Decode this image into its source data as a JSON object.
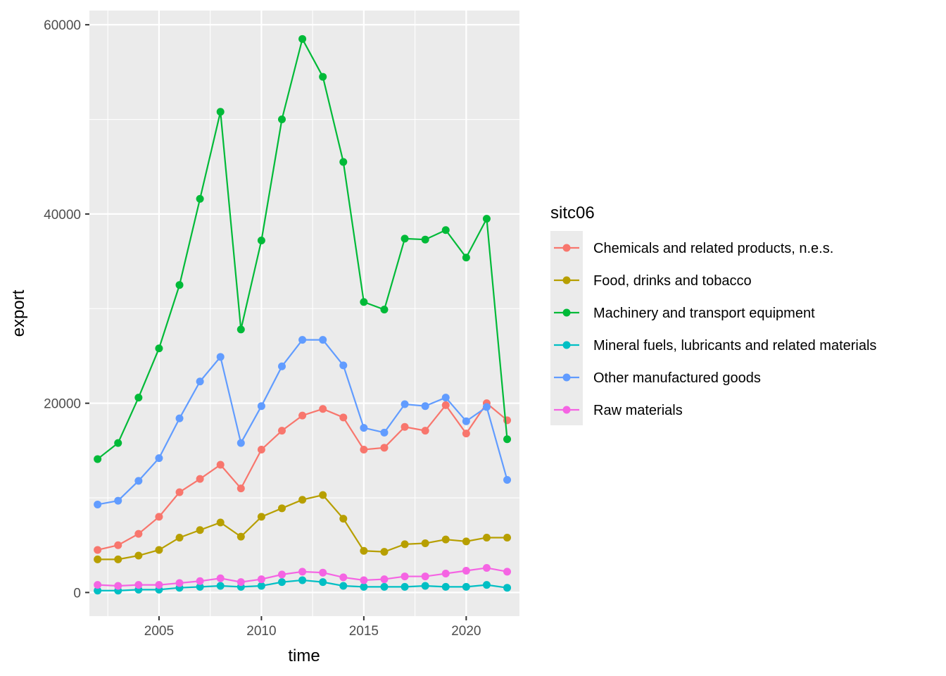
{
  "chart_data": {
    "type": "line",
    "xlabel": "time",
    "ylabel": "export",
    "xlim": [
      2001.6,
      2022.6
    ],
    "ylim": [
      -2500,
      61500
    ],
    "x_ticks": [
      2005,
      2010,
      2015,
      2020
    ],
    "y_ticks": [
      0,
      20000,
      40000,
      60000
    ],
    "grid": true,
    "legend": {
      "title": "sitc06",
      "position": "right"
    },
    "x": [
      2002,
      2003,
      2004,
      2005,
      2006,
      2007,
      2008,
      2009,
      2010,
      2011,
      2012,
      2013,
      2014,
      2015,
      2016,
      2017,
      2018,
      2019,
      2020,
      2021,
      2022
    ],
    "series": [
      {
        "name": "Chemicals and related products, n.e.s.",
        "color": "#F8766D",
        "values": [
          4500,
          5000,
          6200,
          8000,
          10600,
          12000,
          13500,
          11000,
          15100,
          17100,
          18700,
          19400,
          18500,
          15100,
          15300,
          17500,
          17100,
          19800,
          16800,
          20000,
          18200
        ]
      },
      {
        "name": "Food, drinks and tobacco",
        "color": "#B79F00",
        "values": [
          3500,
          3500,
          3900,
          4500,
          5800,
          6600,
          7400,
          5900,
          8000,
          8900,
          9800,
          10300,
          7800,
          4400,
          4300,
          5100,
          5200,
          5600,
          5400,
          5800,
          5800
        ]
      },
      {
        "name": "Machinery and transport equipment",
        "color": "#00BA38",
        "values": [
          14100,
          15800,
          20600,
          25800,
          32500,
          41600,
          50800,
          27800,
          37200,
          50000,
          58500,
          54500,
          45500,
          30700,
          29900,
          37400,
          37300,
          38300,
          35400,
          39500,
          16200
        ]
      },
      {
        "name": "Mineral fuels, lubricants and related materials",
        "color": "#00BFC4",
        "values": [
          200,
          200,
          300,
          300,
          500,
          600,
          700,
          600,
          700,
          1100,
          1300,
          1100,
          700,
          600,
          600,
          600,
          700,
          600,
          600,
          800,
          500
        ]
      },
      {
        "name": "Other manufactured goods",
        "color": "#619CFF",
        "values": [
          9300,
          9700,
          11800,
          14200,
          18400,
          22300,
          24900,
          15800,
          19700,
          23900,
          26700,
          26700,
          24000,
          17400,
          16900,
          19900,
          19700,
          20600,
          18100,
          19600,
          11900
        ]
      },
      {
        "name": "Raw materials",
        "color": "#F564E3",
        "values": [
          800,
          700,
          800,
          800,
          1000,
          1200,
          1500,
          1100,
          1400,
          1900,
          2200,
          2100,
          1600,
          1300,
          1400,
          1700,
          1700,
          2000,
          2300,
          2600,
          2200
        ]
      }
    ]
  }
}
